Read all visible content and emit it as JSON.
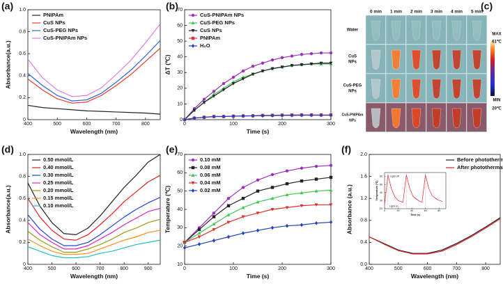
{
  "chart_data": [
    {
      "type": "line",
      "panel": "(a)",
      "xlabel": "Wavelength (nm)",
      "ylabel": "Absorbance(a.u.)",
      "x": [
        400,
        450,
        500,
        550,
        600,
        650,
        700,
        750,
        800,
        850
      ],
      "xlim": [
        400,
        850
      ],
      "xticks": [
        400,
        500,
        600,
        700,
        800
      ],
      "ylim": [
        0,
        1.0
      ],
      "yticks": [
        0.0,
        0.2,
        0.4,
        0.6,
        0.8,
        {
          "value": 1.0,
          "label": "1.0"
        }
      ],
      "legend": "upper left",
      "series": [
        {
          "name": "PNIPAm",
          "color": "#222222",
          "values": [
            0.13,
            0.11,
            0.1,
            0.09,
            0.08,
            0.075,
            0.07,
            0.065,
            0.06,
            0.05
          ]
        },
        {
          "name": "CuS NPs",
          "color": "#e8392f",
          "values": [
            0.37,
            0.27,
            0.19,
            0.15,
            0.16,
            0.22,
            0.31,
            0.41,
            0.53,
            0.65
          ]
        },
        {
          "name": "CuS-PEG NPs",
          "color": "#2c5fd8",
          "values": [
            0.42,
            0.31,
            0.22,
            0.17,
            0.18,
            0.24,
            0.34,
            0.45,
            0.58,
            0.72
          ]
        },
        {
          "name": "CuS-PNIPAm NPs",
          "color": "#e07ee0",
          "values": [
            0.55,
            0.38,
            0.27,
            0.21,
            0.22,
            0.29,
            0.41,
            0.54,
            0.7,
            0.87
          ]
        }
      ]
    },
    {
      "type": "line",
      "panel": "(b)",
      "xlabel": "Time (s)",
      "ylabel": "ΔT (℃)",
      "x": [
        0,
        20,
        40,
        60,
        80,
        100,
        120,
        140,
        160,
        180,
        200,
        220,
        240,
        260,
        280,
        300
      ],
      "xlim": [
        0,
        300
      ],
      "xticks": [
        0,
        100,
        200,
        300
      ],
      "ylim": [
        0,
        70
      ],
      "yticks": [
        0,
        10,
        20,
        30,
        40,
        50,
        60,
        70
      ],
      "legend": "upper left",
      "series": [
        {
          "name": "CuS-PNIPAm NPs",
          "color": "#9b30c0",
          "marker": "circle",
          "values": [
            0,
            7,
            13,
            18,
            23,
            27,
            31,
            34,
            36,
            38,
            39.5,
            40.5,
            41.5,
            42,
            42.5,
            42.5
          ]
        },
        {
          "name": "CuS-PEG NPs",
          "color": "#3cc850",
          "marker": "triangle",
          "values": [
            0,
            6,
            11,
            16,
            20,
            24,
            27,
            29,
            31,
            32.5,
            33.5,
            34.5,
            35,
            35.5,
            35.5,
            35.5
          ]
        },
        {
          "name": "CuS NPs",
          "color": "#222222",
          "marker": "triangle-down",
          "values": [
            0,
            6,
            11,
            15,
            19,
            23,
            26,
            29,
            31,
            32.5,
            33.5,
            34.5,
            35,
            35.5,
            36,
            36
          ]
        },
        {
          "name": "PNIPAm",
          "color": "#e0302a",
          "marker": "square",
          "values": [
            0,
            1,
            1.5,
            2,
            2,
            2.2,
            2.4,
            2.5,
            2.7,
            2.8,
            2.9,
            3,
            3,
            3,
            3,
            3
          ]
        },
        {
          "name": "H₂O",
          "color": "#2040c0",
          "marker": "diamond",
          "values": [
            0,
            1,
            1.5,
            2,
            2,
            2.2,
            2.3,
            2.4,
            2.5,
            2.6,
            2.7,
            2.7,
            2.8,
            2.8,
            2.8,
            2.8
          ]
        }
      ]
    },
    {
      "type": "image-grid",
      "panel": "(c)",
      "columns": [
        "0 min",
        "1 min",
        "2 min",
        "3 min",
        "4 min",
        "5 min"
      ],
      "row_labels": [
        [
          "Water"
        ],
        [
          "CuS",
          "NPs"
        ],
        [
          "CuS-PEG",
          "NPs"
        ],
        [
          "CuS-PNIPAm",
          "NPs"
        ]
      ],
      "colorbar": {
        "max_label": "MAX",
        "max_value": "61℃",
        "min_label": "MIN",
        "min_value": "20℃"
      }
    },
    {
      "type": "line",
      "panel": "(d)",
      "xlabel": "Wavelength (nm)",
      "ylabel": "Absorbance(a.u.)",
      "x": [
        400,
        450,
        500,
        550,
        600,
        650,
        700,
        750,
        800,
        850,
        900,
        950
      ],
      "xlim": [
        400,
        950
      ],
      "xticks": [
        400,
        500,
        600,
        700,
        800,
        900
      ],
      "ylim": [
        0,
        1.0
      ],
      "yticks": [
        0.0,
        0.2,
        0.4,
        0.6,
        0.8,
        {
          "value": 1.0,
          "label": "1.0"
        }
      ],
      "legend": "upper left",
      "series": [
        {
          "name": "0.50 mmol/L",
          "color": "#222222",
          "values": [
            0.74,
            0.53,
            0.38,
            0.28,
            0.27,
            0.33,
            0.44,
            0.57,
            0.7,
            0.81,
            0.93,
            1.0
          ]
        },
        {
          "name": "0.40 mmol/L",
          "color": "#e02020",
          "values": [
            0.6,
            0.43,
            0.31,
            0.23,
            0.22,
            0.27,
            0.36,
            0.46,
            0.57,
            0.66,
            0.75,
            0.81
          ]
        },
        {
          "name": "0.30 mmol/L",
          "color": "#2040e0",
          "values": [
            0.45,
            0.32,
            0.23,
            0.17,
            0.17,
            0.2,
            0.27,
            0.35,
            0.43,
            0.5,
            0.56,
            0.61
          ]
        },
        {
          "name": "0.25 mmol/L",
          "color": "#e020c0",
          "values": [
            0.38,
            0.27,
            0.2,
            0.14,
            0.14,
            0.17,
            0.23,
            0.29,
            0.36,
            0.42,
            0.48,
            0.51
          ]
        },
        {
          "name": "0.20 mmol/L",
          "color": "#9a9a10",
          "values": [
            0.3,
            0.22,
            0.16,
            0.11,
            0.11,
            0.14,
            0.18,
            0.23,
            0.29,
            0.33,
            0.38,
            0.41
          ]
        },
        {
          "name": "0.15 mmol/L",
          "color": "#ff8c1a",
          "values": [
            0.23,
            0.17,
            0.12,
            0.09,
            0.09,
            0.1,
            0.14,
            0.18,
            0.22,
            0.25,
            0.29,
            0.31
          ]
        },
        {
          "name": "0.10 mmol/L",
          "color": "#20c0c0",
          "values": [
            0.16,
            0.12,
            0.08,
            0.06,
            0.06,
            0.07,
            0.1,
            0.12,
            0.15,
            0.18,
            0.2,
            0.22
          ]
        }
      ]
    },
    {
      "type": "line",
      "panel": "(e)",
      "xlabel": "Time (s)",
      "ylabel": "Temperature (℃)",
      "x": [
        0,
        30,
        60,
        90,
        120,
        150,
        180,
        210,
        240,
        270,
        300
      ],
      "xlim": [
        0,
        300
      ],
      "xticks": [
        0,
        100,
        200,
        300
      ],
      "ylim": [
        10,
        70
      ],
      "yticks": [
        10,
        20,
        30,
        40,
        50,
        60,
        70
      ],
      "legend": "upper left",
      "series": [
        {
          "name": "0.10 mM",
          "color": "#9b30c0",
          "marker": "circle",
          "values": [
            22,
            30,
            38,
            46,
            52,
            56,
            59,
            61,
            62.5,
            63.5,
            64
          ]
        },
        {
          "name": "0.08 mM",
          "color": "#222222",
          "marker": "square",
          "values": [
            22,
            29,
            36,
            42,
            46,
            50,
            52,
            54,
            55.5,
            56.5,
            57.5
          ]
        },
        {
          "name": "0.06 mM",
          "color": "#3cc850",
          "marker": "triangle",
          "values": [
            22,
            27,
            32,
            37,
            41,
            44,
            46,
            48,
            49,
            50,
            50.5
          ]
        },
        {
          "name": "0.04 mM",
          "color": "#e0302a",
          "marker": "triangle-down",
          "values": [
            22,
            25,
            29,
            33,
            36,
            38,
            40,
            41,
            42,
            42.5,
            42.5
          ]
        },
        {
          "name": "0.02 mM",
          "color": "#2040c0",
          "marker": "diamond",
          "values": [
            19,
            21,
            23,
            25,
            27,
            28.5,
            30,
            31,
            31.5,
            32.5,
            33
          ]
        }
      ]
    },
    {
      "type": "line",
      "panel": "(f)",
      "xlabel": "Wavelength (nm)",
      "ylabel": "Absorbance (a.u.)",
      "x": [
        400,
        450,
        500,
        550,
        600,
        650,
        700,
        750,
        800,
        850
      ],
      "xlim": [
        400,
        850
      ],
      "xticks": [
        400,
        500,
        600,
        700,
        800
      ],
      "ylim": [
        0,
        2.0
      ],
      "yticks": [
        {
          "value": 0,
          "label": "0.0"
        },
        0.4,
        0.8,
        1.2,
        1.6,
        {
          "value": 2,
          "label": "2.0"
        }
      ],
      "legend": "upper right",
      "series": [
        {
          "name": "Before photothermal",
          "color": "#222222",
          "values": [
            0.5,
            0.38,
            0.26,
            0.2,
            0.2,
            0.26,
            0.38,
            0.52,
            0.68,
            0.85
          ]
        },
        {
          "name": "After photothermal",
          "color": "#e02020",
          "values": [
            0.5,
            0.37,
            0.25,
            0.19,
            0.19,
            0.24,
            0.36,
            0.5,
            0.66,
            0.83
          ]
        }
      ],
      "inset": {
        "xlabel": "Time (s)",
        "ylabel": "Temperature (℃)",
        "x": [
          0,
          5,
          10,
          15,
          20,
          27,
          32,
          37,
          42,
          50,
          55,
          60,
          65,
          70,
          78,
          85
        ],
        "xlim": [
          0,
          90
        ],
        "xticks": [
          0,
          20,
          40,
          60,
          80
        ],
        "ylim": [
          20,
          65
        ],
        "yticks": [
          20,
          30,
          40,
          50,
          60
        ],
        "annotations": [
          "Light off",
          "Light on"
        ],
        "series": [
          {
            "color": "#e02020",
            "values": [
              25,
              62,
              45,
              35,
              30,
              28,
              62,
              45,
              35,
              30,
              28,
              62,
              45,
              36,
              31,
              29
            ]
          }
        ]
      }
    }
  ]
}
